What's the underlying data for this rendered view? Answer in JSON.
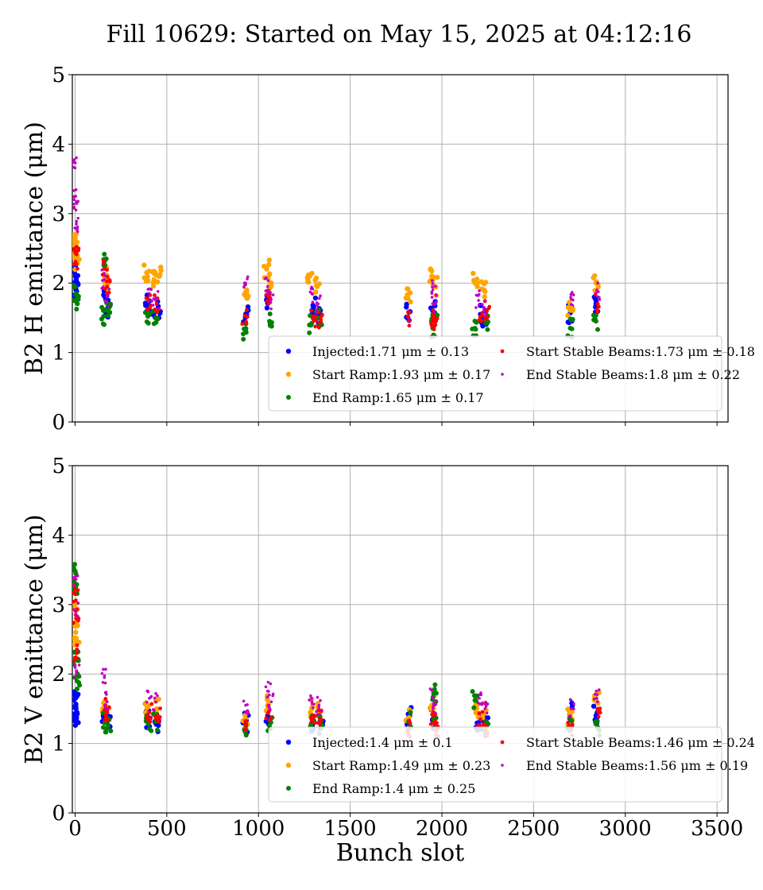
{
  "title": "Fill 10629: Started on May 15, 2025 at 04:12:16",
  "chart_data": [
    {
      "type": "scatter",
      "ylabel": "B2 H emittance (μm)",
      "xlabel": "",
      "xlim": [
        -15,
        3560
      ],
      "ylim": [
        0,
        5
      ],
      "xticks": [
        0,
        500,
        1000,
        1500,
        2000,
        2500,
        3000,
        3500
      ],
      "yticks": [
        0,
        1,
        2,
        3,
        4,
        5
      ],
      "show_xtick_labels": false,
      "grid": true,
      "legend_position": "lower-right",
      "series": [
        {
          "name": "Injected",
          "legend": "Injected:1.71 μm ± 0.13",
          "color": "#0000ff",
          "size": 3.2,
          "points": [
            [
              2,
              2.1
            ],
            [
              5,
              1.9
            ],
            [
              9,
              2.0
            ],
            [
              160,
              1.9
            ],
            [
              170,
              1.75
            ],
            [
              180,
              1.65
            ],
            [
              395,
              1.7
            ],
            [
              420,
              1.55
            ],
            [
              450,
              1.6
            ],
            [
              930,
              1.55
            ],
            [
              1050,
              1.75
            ],
            [
              1300,
              1.65
            ],
            [
              1330,
              1.55
            ],
            [
              1820,
              1.58
            ],
            [
              1950,
              1.6
            ],
            [
              2210,
              1.55
            ],
            [
              2235,
              1.5
            ],
            [
              2700,
              1.57
            ],
            [
              2840,
              1.7
            ]
          ]
        },
        {
          "name": "Start Ramp",
          "legend": "Start Ramp:1.93 μm ± 0.17",
          "color": "#ffa500",
          "size": 3.2,
          "points": [
            [
              1,
              2.65
            ],
            [
              4,
              2.5
            ],
            [
              8,
              2.3
            ],
            [
              160,
              2.1
            ],
            [
              180,
              2.0
            ],
            [
              390,
              2.15
            ],
            [
              430,
              2.05
            ],
            [
              455,
              2.1
            ],
            [
              930,
              1.87
            ],
            [
              1045,
              2.2
            ],
            [
              1070,
              2.0
            ],
            [
              1280,
              2.1
            ],
            [
              1320,
              1.95
            ],
            [
              1815,
              1.78
            ],
            [
              1945,
              2.1
            ],
            [
              1960,
              1.95
            ],
            [
              2180,
              2.0
            ],
            [
              2230,
              1.9
            ],
            [
              2700,
              1.67
            ],
            [
              2840,
              2.0
            ]
          ]
        },
        {
          "name": "End Ramp",
          "legend": "End Ramp:1.65 μm ± 0.17",
          "color": "#008000",
          "size": 3.0,
          "points": [
            [
              3,
              1.75
            ],
            [
              7,
              1.85
            ],
            [
              155,
              1.52
            ],
            [
              170,
              2.35
            ],
            [
              180,
              1.6
            ],
            [
              395,
              1.55
            ],
            [
              440,
              1.5
            ],
            [
              930,
              1.32
            ],
            [
              1060,
              1.45
            ],
            [
              1290,
              1.42
            ],
            [
              1330,
              1.5
            ],
            [
              1950,
              1.35
            ],
            [
              1960,
              1.45
            ],
            [
              2180,
              1.35
            ],
            [
              2240,
              1.42
            ],
            [
              2700,
              1.35
            ],
            [
              2840,
              1.45
            ]
          ]
        },
        {
          "name": "Start Stable Beams",
          "legend": "Start Stable Beams:1.73 μm ± 0.18",
          "color": "#ff0000",
          "size": 2.4,
          "points": [
            [
              2,
              2.3
            ],
            [
              8,
              2.45
            ],
            [
              165,
              2.2
            ],
            [
              175,
              1.95
            ],
            [
              400,
              1.75
            ],
            [
              445,
              1.7
            ],
            [
              925,
              1.53
            ],
            [
              1055,
              1.8
            ],
            [
              1300,
              1.5
            ],
            [
              1340,
              1.45
            ],
            [
              1815,
              1.52
            ],
            [
              1955,
              1.5
            ],
            [
              1965,
              1.4
            ],
            [
              2215,
              1.45
            ],
            [
              2245,
              1.6
            ],
            [
              2850,
              1.7
            ]
          ]
        },
        {
          "name": "End Stable Beams",
          "legend": "End Stable Beams:1.8 μm ± 0.22",
          "color": "#bf00bf",
          "size": 1.8,
          "points": [
            [
              1,
              3.73
            ],
            [
              3,
              3.25
            ],
            [
              5,
              3.05
            ],
            [
              7,
              2.85
            ],
            [
              160,
              2.05
            ],
            [
              175,
              1.8
            ],
            [
              405,
              1.85
            ],
            [
              440,
              1.75
            ],
            [
              930,
              2.0
            ],
            [
              1050,
              1.95
            ],
            [
              1065,
              1.75
            ],
            [
              1290,
              1.85
            ],
            [
              1325,
              1.7
            ],
            [
              1950,
              1.9
            ],
            [
              1960,
              1.7
            ],
            [
              2200,
              1.75
            ],
            [
              2230,
              1.65
            ],
            [
              2705,
              1.77
            ],
            [
              2845,
              1.9
            ]
          ]
        }
      ]
    },
    {
      "type": "scatter",
      "ylabel": "B2 V emittance (μm)",
      "xlabel": "Bunch slot",
      "xlim": [
        -15,
        3560
      ],
      "ylim": [
        0,
        5
      ],
      "xticks": [
        0,
        500,
        1000,
        1500,
        2000,
        2500,
        3000,
        3500
      ],
      "yticks": [
        0,
        1,
        2,
        3,
        4,
        5
      ],
      "show_xtick_labels": true,
      "grid": true,
      "legend_position": "lower-right",
      "series": [
        {
          "name": "Injected",
          "legend": "Injected:1.4 μm ± 0.1",
          "color": "#0000ff",
          "size": 3.2,
          "points": [
            [
              2,
              1.65
            ],
            [
              5,
              1.5
            ],
            [
              8,
              1.4
            ],
            [
              160,
              1.45
            ],
            [
              180,
              1.35
            ],
            [
              400,
              1.35
            ],
            [
              450,
              1.3
            ],
            [
              930,
              1.3
            ],
            [
              1050,
              1.4
            ],
            [
              1300,
              1.3
            ],
            [
              1340,
              1.28
            ],
            [
              1820,
              1.38
            ],
            [
              1950,
              1.35
            ],
            [
              2200,
              1.3
            ],
            [
              2240,
              1.3
            ],
            [
              2700,
              1.45
            ],
            [
              2840,
              1.4
            ]
          ]
        },
        {
          "name": "Start Ramp",
          "legend": "Start Ramp:1.49 μm ± 0.23",
          "color": "#ffa500",
          "size": 3.2,
          "points": [
            [
              1,
              2.95
            ],
            [
              4,
              2.6
            ],
            [
              7,
              2.45
            ],
            [
              160,
              1.6
            ],
            [
              180,
              1.5
            ],
            [
              395,
              1.55
            ],
            [
              445,
              1.5
            ],
            [
              930,
              1.35
            ],
            [
              1050,
              1.55
            ],
            [
              1290,
              1.5
            ],
            [
              1335,
              1.45
            ],
            [
              1815,
              1.35
            ],
            [
              1945,
              1.55
            ],
            [
              2190,
              1.5
            ],
            [
              2235,
              1.45
            ],
            [
              2700,
              1.4
            ],
            [
              2845,
              1.6
            ]
          ]
        },
        {
          "name": "End Ramp",
          "legend": "End Ramp:1.4 μm ± 0.25",
          "color": "#008000",
          "size": 3.0,
          "points": [
            [
              1,
              3.48
            ],
            [
              3,
              3.25
            ],
            [
              6,
              2.2
            ],
            [
              10,
              1.9
            ],
            [
              165,
              1.3
            ],
            [
              180,
              1.25
            ],
            [
              400,
              1.28
            ],
            [
              440,
              1.32
            ],
            [
              930,
              1.2
            ],
            [
              1060,
              1.25
            ],
            [
              1290,
              1.3
            ],
            [
              1340,
              1.28
            ],
            [
              1820,
              1.32
            ],
            [
              1955,
              1.72
            ],
            [
              1960,
              1.3
            ],
            [
              2180,
              1.62
            ],
            [
              2240,
              1.25
            ],
            [
              2700,
              1.25
            ],
            [
              2850,
              1.22
            ]
          ]
        },
        {
          "name": "Start Stable Beams",
          "legend": "Start Stable Beams:1.46 μm ± 0.24",
          "color": "#ff0000",
          "size": 2.4,
          "points": [
            [
              2,
              3.15
            ],
            [
              5,
              2.8
            ],
            [
              9,
              2.3
            ],
            [
              165,
              1.55
            ],
            [
              175,
              1.45
            ],
            [
              405,
              1.45
            ],
            [
              450,
              1.4
            ],
            [
              935,
              1.32
            ],
            [
              1055,
              1.45
            ],
            [
              1300,
              1.4
            ],
            [
              1335,
              1.35
            ],
            [
              1815,
              1.2
            ],
            [
              1955,
              1.4
            ],
            [
              1965,
              1.2
            ],
            [
              2210,
              1.35
            ],
            [
              2240,
              1.2
            ],
            [
              2700,
              1.22
            ],
            [
              2850,
              1.5
            ]
          ]
        },
        {
          "name": "End Stable Beams",
          "legend": "End Stable Beams:1.56 μm ± 0.19",
          "color": "#bf00bf",
          "size": 1.8,
          "points": [
            [
              2,
              3.4
            ],
            [
              5,
              2.9
            ],
            [
              8,
              2.0
            ],
            [
              160,
              1.95
            ],
            [
              175,
              1.6
            ],
            [
              405,
              1.65
            ],
            [
              440,
              1.6
            ],
            [
              930,
              1.55
            ],
            [
              1055,
              1.75
            ],
            [
              1070,
              1.6
            ],
            [
              1290,
              1.65
            ],
            [
              1330,
              1.55
            ],
            [
              1950,
              1.65
            ],
            [
              1960,
              1.55
            ],
            [
              2205,
              1.7
            ],
            [
              2235,
              1.5
            ],
            [
              2705,
              1.5
            ],
            [
              2845,
              1.65
            ]
          ]
        }
      ]
    }
  ]
}
